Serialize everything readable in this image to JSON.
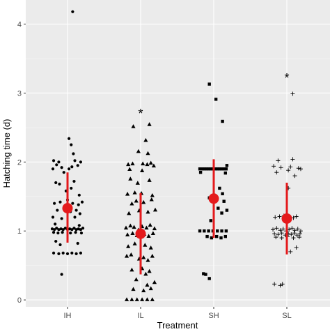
{
  "chart_data": {
    "type": "scatter",
    "xlabel": "Treatment",
    "ylabel": "Hatching time (d)",
    "categories": [
      "IH",
      "IL",
      "SH",
      "SL"
    ],
    "ylim": [
      -0.1,
      4.35
    ],
    "yticks": [
      0,
      1,
      2,
      3,
      4
    ],
    "grid": true,
    "background": "#ebebeb",
    "summary_color": "#e41a1c",
    "summary": [
      {
        "category": "IH",
        "mean": 1.33,
        "lower": 0.83,
        "upper": 1.85
      },
      {
        "category": "IL",
        "mean": 0.96,
        "lower": 0.37,
        "upper": 1.55
      },
      {
        "category": "SH",
        "mean": 1.47,
        "lower": 0.9,
        "upper": 2.04
      },
      {
        "category": "SL",
        "mean": 1.18,
        "lower": 0.66,
        "upper": 1.7
      }
    ],
    "annotations": [
      {
        "category": "IL",
        "text": "*",
        "y": 2.72
      },
      {
        "category": "SL",
        "text": "*",
        "y": 3.24
      }
    ],
    "series": [
      {
        "name": "IH",
        "marker": "circle",
        "points": [
          [
            -0.19,
            2.02
          ],
          [
            -0.12,
            2.0
          ],
          [
            0.1,
            2.02
          ],
          [
            0.18,
            2.0
          ],
          [
            -0.15,
            1.96
          ],
          [
            0.14,
            1.95
          ],
          [
            -0.08,
            1.92
          ],
          [
            0.06,
            1.93
          ],
          [
            -0.2,
            1.9
          ],
          [
            0.02,
            1.9
          ],
          [
            0.02,
            2.34
          ],
          [
            0.05,
            2.25
          ],
          [
            0.08,
            2.12
          ],
          [
            -0.05,
            1.85
          ],
          [
            0.05,
            1.62
          ],
          [
            -0.02,
            1.58
          ],
          [
            -0.16,
            1.7
          ],
          [
            0.16,
            1.52
          ],
          [
            -0.11,
            1.68
          ],
          [
            0.09,
            1.72
          ],
          [
            -0.18,
            1.4
          ],
          [
            -0.1,
            1.42
          ],
          [
            0.0,
            1.45
          ],
          [
            0.07,
            1.4
          ],
          [
            0.15,
            1.38
          ],
          [
            0.2,
            1.42
          ],
          [
            -0.14,
            1.3
          ],
          [
            -0.05,
            1.32
          ],
          [
            0.04,
            1.28
          ],
          [
            0.12,
            1.3
          ],
          [
            0.17,
            1.25
          ],
          [
            -0.2,
            1.2
          ],
          [
            -0.08,
            1.18
          ],
          [
            0.1,
            1.2
          ],
          [
            -0.17,
            1.1
          ],
          [
            0.16,
            1.08
          ],
          [
            -0.21,
            1.03
          ],
          [
            -0.18,
            1.02
          ],
          [
            -0.15,
            1.04
          ],
          [
            -0.12,
            1.02
          ],
          [
            -0.09,
            1.03
          ],
          [
            -0.06,
            1.02
          ],
          [
            -0.03,
            1.04
          ],
          [
            0.0,
            1.02
          ],
          [
            0.03,
            1.03
          ],
          [
            0.06,
            1.02
          ],
          [
            0.09,
            1.04
          ],
          [
            0.12,
            1.02
          ],
          [
            0.15,
            1.03
          ],
          [
            0.18,
            1.02
          ],
          [
            0.21,
            1.04
          ],
          [
            -0.19,
            0.98
          ],
          [
            -0.13,
            0.97
          ],
          [
            -0.07,
            0.98
          ],
          [
            0.04,
            0.97
          ],
          [
            0.11,
            0.98
          ],
          [
            0.19,
            0.97
          ],
          [
            -0.16,
            0.85
          ],
          [
            -0.1,
            0.8
          ],
          [
            0.14,
            0.82
          ],
          [
            -0.19,
            0.68
          ],
          [
            -0.12,
            0.67
          ],
          [
            -0.06,
            0.68
          ],
          [
            0.0,
            0.67
          ],
          [
            0.06,
            0.68
          ],
          [
            0.12,
            0.67
          ],
          [
            0.18,
            0.68
          ],
          [
            -0.08,
            0.37
          ],
          [
            0.07,
            4.18
          ]
        ]
      },
      {
        "name": "IL",
        "marker": "triangle",
        "points": [
          [
            -0.1,
            2.52
          ],
          [
            0.12,
            2.55
          ],
          [
            0.07,
            2.32
          ],
          [
            -0.03,
            2.16
          ],
          [
            0.1,
            2.13
          ],
          [
            -0.17,
            1.97
          ],
          [
            -0.11,
            1.98
          ],
          [
            0.03,
            1.98
          ],
          [
            0.09,
            1.97
          ],
          [
            0.14,
            1.99
          ],
          [
            -0.15,
            1.9
          ],
          [
            0.02,
            1.88
          ],
          [
            0.18,
            1.95
          ],
          [
            -0.14,
            1.76
          ],
          [
            -0.04,
            1.7
          ],
          [
            0.12,
            1.74
          ],
          [
            -0.18,
            1.54
          ],
          [
            -0.08,
            1.56
          ],
          [
            0.01,
            1.55
          ],
          [
            0.16,
            1.52
          ],
          [
            -0.12,
            1.4
          ],
          [
            -0.06,
            1.44
          ],
          [
            0.04,
            1.42
          ],
          [
            0.15,
            1.46
          ],
          [
            -0.16,
            1.26
          ],
          [
            -0.02,
            1.3
          ],
          [
            0.1,
            1.28
          ],
          [
            0.2,
            1.31
          ],
          [
            -0.2,
            1.05
          ],
          [
            -0.14,
            1.08
          ],
          [
            -0.09,
            1.06
          ],
          [
            -0.03,
            1.02
          ],
          [
            0.02,
            1.07
          ],
          [
            0.08,
            1.05
          ],
          [
            0.13,
            1.09
          ],
          [
            0.19,
            1.04
          ],
          [
            -0.18,
            0.95
          ],
          [
            -0.11,
            0.97
          ],
          [
            -0.05,
            0.94
          ],
          [
            0.05,
            0.96
          ],
          [
            0.11,
            0.93
          ],
          [
            0.17,
            0.97
          ],
          [
            -0.17,
            0.78
          ],
          [
            -0.08,
            0.82
          ],
          [
            0.06,
            0.8
          ],
          [
            0.14,
            0.76
          ],
          [
            -0.19,
            0.64
          ],
          [
            -0.13,
            0.66
          ],
          [
            -0.02,
            0.6
          ],
          [
            0.04,
            0.62
          ],
          [
            0.1,
            0.58
          ],
          [
            0.16,
            0.64
          ],
          [
            -0.12,
            0.44
          ],
          [
            0.02,
            0.46
          ],
          [
            0.12,
            0.42
          ],
          [
            0.07,
            0.38
          ],
          [
            -0.06,
            0.3
          ],
          [
            0.19,
            0.26
          ],
          [
            -0.1,
            0.16
          ],
          [
            0.04,
            0.14
          ],
          [
            0.14,
            0.17
          ],
          [
            0.09,
            0.22
          ],
          [
            -0.19,
            0.01
          ],
          [
            -0.12,
            0.01
          ],
          [
            -0.05,
            0.01
          ],
          [
            0.02,
            0.01
          ],
          [
            0.09,
            0.01
          ],
          [
            0.16,
            0.01
          ]
        ]
      },
      {
        "name": "SH",
        "marker": "square",
        "points": [
          [
            -0.06,
            3.13
          ],
          [
            0.03,
            2.91
          ],
          [
            0.12,
            2.59
          ],
          [
            -0.19,
            1.9
          ],
          [
            -0.16,
            1.9
          ],
          [
            -0.13,
            1.9
          ],
          [
            -0.1,
            1.9
          ],
          [
            -0.07,
            1.9
          ],
          [
            -0.04,
            1.9
          ],
          [
            -0.01,
            1.9
          ],
          [
            0.02,
            1.9
          ],
          [
            0.05,
            1.9
          ],
          [
            0.08,
            1.9
          ],
          [
            0.11,
            1.9
          ],
          [
            0.14,
            1.9
          ],
          [
            0.17,
            1.9
          ],
          [
            -0.18,
            1.85
          ],
          [
            0.16,
            1.84
          ],
          [
            0.18,
            1.95
          ],
          [
            0.08,
            1.62
          ],
          [
            0.12,
            1.54
          ],
          [
            -0.06,
            1.48
          ],
          [
            0.14,
            1.43
          ],
          [
            0.06,
            1.33
          ],
          [
            0.18,
            1.3
          ],
          [
            0.11,
            1.26
          ],
          [
            -0.04,
            1.15
          ],
          [
            -0.19,
            1.0
          ],
          [
            -0.13,
            1.0
          ],
          [
            -0.07,
            1.0
          ],
          [
            -0.01,
            1.0
          ],
          [
            0.05,
            1.0
          ],
          [
            0.11,
            1.0
          ],
          [
            0.17,
            1.0
          ],
          [
            -0.09,
            0.92
          ],
          [
            -0.03,
            0.9
          ],
          [
            0.04,
            0.92
          ],
          [
            0.1,
            0.9
          ],
          [
            0.16,
            0.92
          ],
          [
            -0.14,
            0.38
          ],
          [
            -0.11,
            0.37
          ],
          [
            -0.06,
            0.31
          ]
        ]
      },
      {
        "name": "SL",
        "marker": "plus",
        "points": [
          [
            -0.12,
            2.02
          ],
          [
            0.08,
            2.04
          ],
          [
            -0.18,
            1.94
          ],
          [
            -0.08,
            1.92
          ],
          [
            0.05,
            1.93
          ],
          [
            0.16,
            1.91
          ],
          [
            0.19,
            1.9
          ],
          [
            0.02,
            1.88
          ],
          [
            -0.14,
            1.85
          ],
          [
            0.11,
            1.8
          ],
          [
            0.02,
            1.62
          ],
          [
            -0.16,
            1.2
          ],
          [
            -0.1,
            1.21
          ],
          [
            -0.04,
            1.22
          ],
          [
            0.04,
            1.2
          ],
          [
            0.09,
            1.19
          ],
          [
            0.13,
            1.21
          ],
          [
            -0.19,
            1.02
          ],
          [
            -0.14,
            1.04
          ],
          [
            -0.09,
            1.01
          ],
          [
            -0.05,
            1.03
          ],
          [
            -0.01,
            1.0
          ],
          [
            0.03,
            1.02
          ],
          [
            0.07,
            1.04
          ],
          [
            0.11,
            1.01
          ],
          [
            0.15,
            1.03
          ],
          [
            0.19,
            1.0
          ],
          [
            -0.17,
            0.96
          ],
          [
            -0.12,
            0.95
          ],
          [
            -0.07,
            0.97
          ],
          [
            -0.02,
            0.94
          ],
          [
            0.02,
            0.96
          ],
          [
            0.06,
            0.95
          ],
          [
            0.1,
            0.97
          ],
          [
            0.14,
            0.94
          ],
          [
            0.18,
            0.96
          ],
          [
            -0.15,
            0.91
          ],
          [
            -0.07,
            0.9
          ],
          [
            0.01,
            0.92
          ],
          [
            0.09,
            0.9
          ],
          [
            0.17,
            0.91
          ],
          [
            0.13,
            0.76
          ],
          [
            0.05,
            0.7
          ],
          [
            -0.17,
            0.23
          ],
          [
            -0.09,
            0.21
          ],
          [
            -0.06,
            0.23
          ],
          [
            0.08,
            2.99
          ]
        ]
      }
    ]
  }
}
